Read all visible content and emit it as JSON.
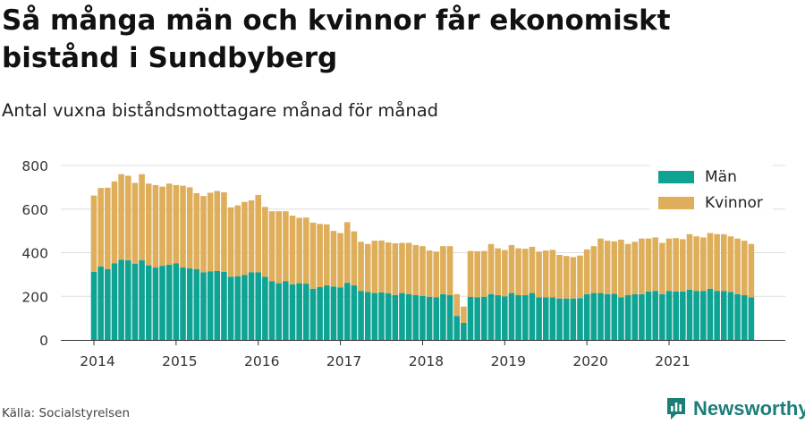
{
  "header": {
    "title": "Så många män och kvinnor får ekonomiskt bistånd i Sundbyberg",
    "subtitle": "Antal vuxna biståndsmottagare månad för månad"
  },
  "footer": {
    "source": "Källa: Socialstyrelsen",
    "brand": "Newsworthy"
  },
  "colors": {
    "men": "#0fa394",
    "women": "#deae5a",
    "grid": "#dddddd",
    "axis": "#333333",
    "brand": "#1d7d77"
  },
  "chart_data": {
    "type": "bar",
    "stacked": true,
    "x_start": "2014-01",
    "x_ticks": [
      "2014",
      "2015",
      "2016",
      "2017",
      "2018",
      "2019",
      "2020",
      "2021"
    ],
    "y_ticks": [
      "0",
      "200",
      "400",
      "600",
      "800"
    ],
    "ylim": [
      0,
      800
    ],
    "grid": true,
    "legend_position": "top-right",
    "series": [
      {
        "name": "Män",
        "values": [
          312,
          337,
          325,
          352,
          368,
          365,
          350,
          365,
          342,
          332,
          340,
          345,
          352,
          332,
          328,
          325,
          310,
          315,
          316,
          312,
          290,
          292,
          298,
          310,
          310,
          290,
          270,
          260,
          270,
          255,
          260,
          258,
          235,
          242,
          250,
          245,
          240,
          262,
          250,
          225,
          220,
          215,
          218,
          214,
          206,
          215,
          210,
          205,
          202,
          198,
          195,
          210,
          205,
          110,
          78,
          198,
          195,
          198,
          210,
          205,
          200,
          215,
          205,
          205,
          215,
          195,
          195,
          195,
          190,
          190,
          190,
          192,
          210,
          215,
          215,
          210,
          212,
          195,
          205,
          210,
          210,
          222,
          225,
          210,
          225,
          222,
          222,
          230,
          225,
          225,
          235,
          225,
          225,
          220,
          210,
          205,
          195
        ]
      },
      {
        "name": "Kvinnor",
        "values": [
          350,
          360,
          373,
          375,
          392,
          388,
          370,
          395,
          375,
          378,
          363,
          372,
          358,
          375,
          372,
          348,
          350,
          360,
          367,
          365,
          318,
          325,
          335,
          330,
          355,
          320,
          320,
          330,
          320,
          315,
          300,
          303,
          303,
          290,
          280,
          255,
          250,
          278,
          248,
          225,
          220,
          240,
          238,
          233,
          237,
          230,
          235,
          230,
          228,
          212,
          210,
          220,
          225,
          100,
          75,
          210,
          212,
          210,
          230,
          215,
          212,
          220,
          215,
          213,
          212,
          210,
          215,
          218,
          200,
          195,
          190,
          195,
          205,
          215,
          250,
          245,
          240,
          265,
          235,
          240,
          255,
          243,
          245,
          235,
          240,
          245,
          240,
          255,
          250,
          245,
          255,
          260,
          260,
          255,
          255,
          250,
          245
        ]
      }
    ]
  }
}
